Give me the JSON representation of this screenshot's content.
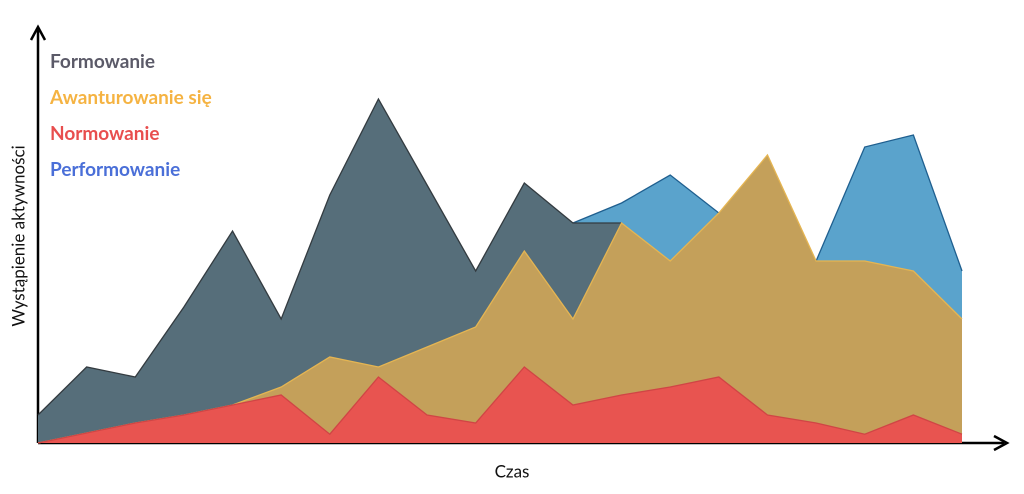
{
  "chart_data": {
    "type": "area",
    "x_label": "Czas",
    "y_label": "Wystąpienie aktywności",
    "x": [
      0,
      1,
      2,
      3,
      4,
      5,
      6,
      7,
      8,
      9,
      10,
      11,
      12,
      13,
      14,
      15,
      16,
      17,
      18,
      19
    ],
    "xlim": [
      0,
      19
    ],
    "ylim": [
      0,
      100
    ],
    "series": [
      {
        "name": "Formowanie",
        "color": "#566e7a",
        "line_color": "#333b40",
        "legend_color": "#5b5a68",
        "values": [
          7,
          19,
          16.5,
          34,
          53,
          31,
          62,
          86,
          64.5,
          43,
          65,
          55,
          55,
          null,
          null,
          null,
          null,
          null,
          null,
          null
        ]
      },
      {
        "name": "Awanturowanie się",
        "color": "#c4a05a",
        "line_color": "#e5b552",
        "legend_color": "#f5b342",
        "values": [
          0,
          2.5,
          5,
          7,
          9.5,
          14,
          21.5,
          19,
          24,
          29,
          48,
          31,
          55,
          45.5,
          57.5,
          72,
          45.5,
          45.5,
          43,
          31
        ]
      },
      {
        "name": "Normowanie",
        "color": "#e85450",
        "line_color": "#d04545",
        "legend_color": "#e84e4e",
        "values": [
          0,
          2.5,
          5,
          7,
          9.5,
          12,
          2.2,
          16.5,
          7,
          5,
          19,
          9.5,
          12,
          14,
          16.5,
          7,
          5,
          2.2,
          7,
          2.2
        ]
      },
      {
        "name": "Performowanie",
        "color": "#5aa3cc",
        "line_color": "#1f5f8f",
        "legend_color": "#4a6fd8",
        "values": [
          null,
          null,
          null,
          null,
          null,
          null,
          null,
          null,
          null,
          null,
          null,
          55,
          60,
          67,
          57.5,
          50,
          45.5,
          74,
          77,
          43
        ]
      }
    ],
    "draw_order": [
      3,
      0,
      1,
      2
    ]
  }
}
